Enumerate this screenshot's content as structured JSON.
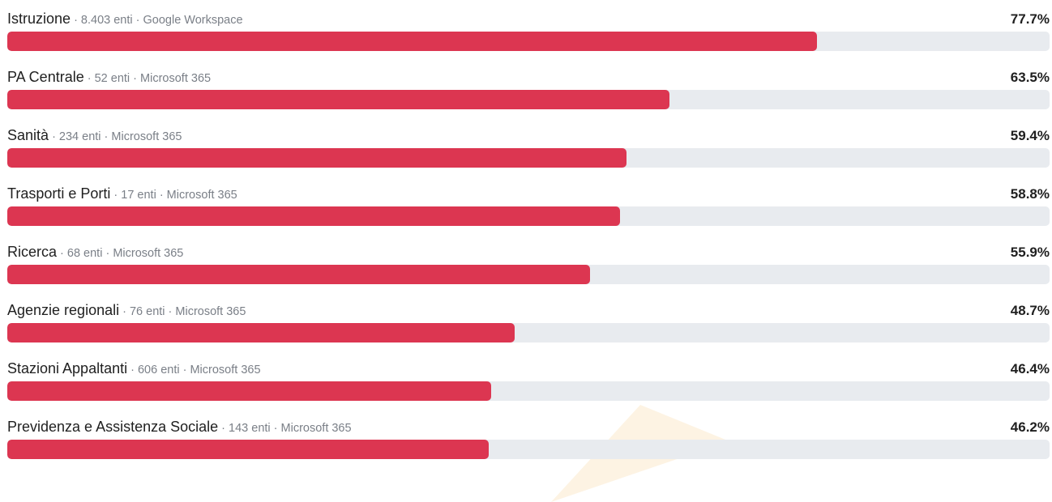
{
  "chart_data": {
    "type": "bar",
    "orientation": "horizontal",
    "xlim": [
      0,
      100
    ],
    "unit": "%",
    "categories": [
      "Istruzione",
      "PA Centrale",
      "Sanità",
      "Trasporti e Porti",
      "Ricerca",
      "Agenzie regionali",
      "Stazioni Appaltanti",
      "Previdenza e Assistenza Sociale"
    ],
    "values": [
      77.7,
      63.5,
      59.4,
      58.8,
      55.9,
      48.7,
      46.4,
      46.2
    ],
    "rows": [
      {
        "label": "Istruzione",
        "meta": " · 8.403 enti · Google Workspace",
        "value": 77.7,
        "value_label": "77.7%"
      },
      {
        "label": "PA Centrale",
        "meta": " · 52 enti · Microsoft 365",
        "value": 63.5,
        "value_label": "63.5%"
      },
      {
        "label": "Sanità",
        "meta": " · 234 enti · Microsoft 365",
        "value": 59.4,
        "value_label": "59.4%"
      },
      {
        "label": "Trasporti e Porti",
        "meta": " · 17 enti · Microsoft 365",
        "value": 58.8,
        "value_label": "58.8%"
      },
      {
        "label": "Ricerca",
        "meta": " · 68 enti · Microsoft 365",
        "value": 55.9,
        "value_label": "55.9%"
      },
      {
        "label": "Agenzie regionali",
        "meta": " · 76 enti · Microsoft 365",
        "value": 48.7,
        "value_label": "48.7%"
      },
      {
        "label": "Stazioni Appaltanti",
        "meta": " · 606 enti · Microsoft 365",
        "value": 46.4,
        "value_label": "46.4%"
      },
      {
        "label": "Previdenza e Assistenza Sociale",
        "meta": " · 143 enti · Microsoft 365",
        "value": 46.2,
        "value_label": "46.2%"
      }
    ],
    "colors": {
      "bar": "#dc3651",
      "track": "#e8ebef",
      "label": "#1f1f1f",
      "meta": "#7a7f87"
    }
  }
}
